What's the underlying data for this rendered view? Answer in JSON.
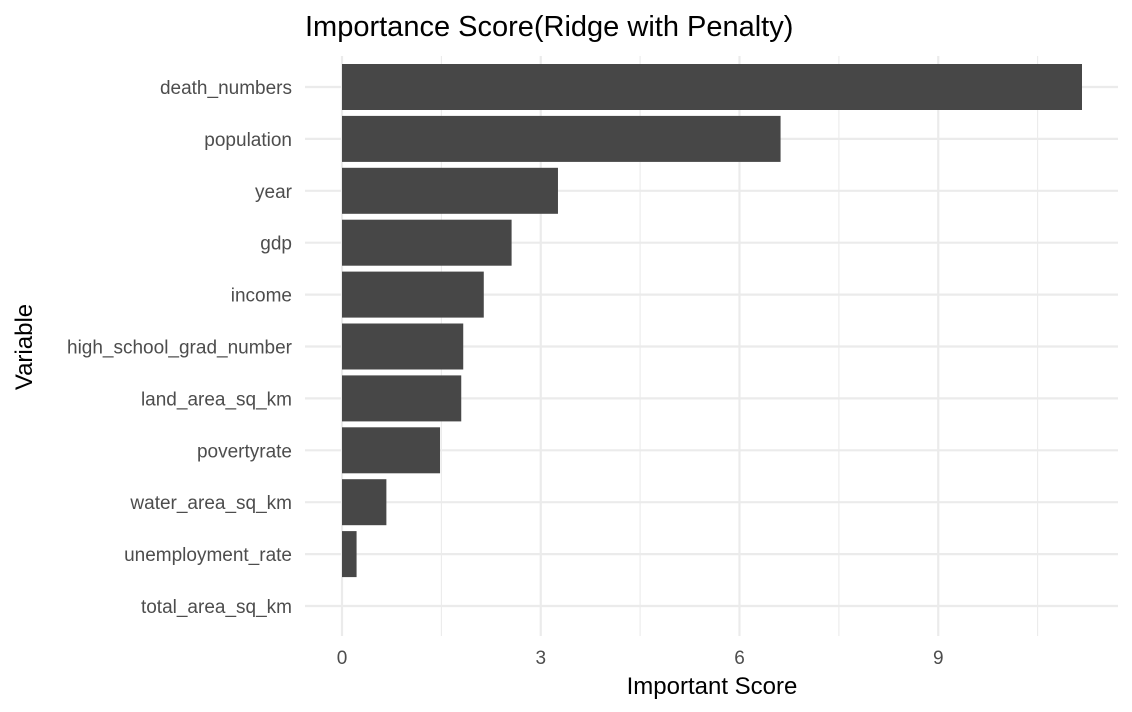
{
  "chart_data": {
    "type": "bar",
    "orientation": "horizontal",
    "title": "Importance Score(Ridge with Penalty)",
    "xlabel": "Important Score",
    "ylabel": "Variable",
    "categories": [
      "death_numbers",
      "population",
      "year",
      "gdp",
      "income",
      "high_school_grad_number",
      "land_area_sq_km",
      "povertyrate",
      "water_area_sq_km",
      "unemployment_rate",
      "total_area_sq_km"
    ],
    "values": [
      11.17,
      6.62,
      3.26,
      2.56,
      2.14,
      1.83,
      1.8,
      1.48,
      0.67,
      0.22,
      0.0
    ],
    "xlim": [
      0,
      11.17
    ],
    "xticks": [
      0,
      3,
      6,
      9
    ],
    "grid": true,
    "bar_color": "#474747"
  }
}
